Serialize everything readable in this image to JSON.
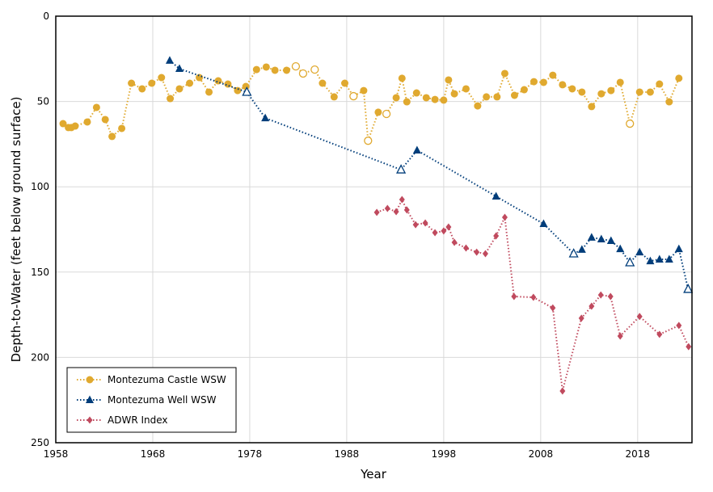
{
  "chart_data": {
    "type": "line",
    "xlabel": "Year",
    "ylabel": "Depth-to-Water (feet below ground surface)",
    "xlim": [
      1958,
      2023.6
    ],
    "ylim": [
      0,
      250
    ],
    "y_inverted": true,
    "grid": true,
    "xticks": [
      1958,
      1968,
      1978,
      1988,
      1998,
      2008,
      2018
    ],
    "yticks": [
      0,
      50,
      100,
      150,
      200,
      250
    ],
    "legend_position": "bottom-left",
    "series": [
      {
        "name": "Montezuma Castle WSW",
        "color": "#E0A92F",
        "marker": "circle",
        "points": [
          [
            1958.75,
            63
          ],
          [
            1959.3,
            65.3
          ],
          [
            1959.6,
            65.3
          ],
          [
            1960.0,
            64.4
          ],
          [
            1961.25,
            62
          ],
          [
            1962.2,
            53.5
          ],
          [
            1963.1,
            60.6
          ],
          [
            1963.8,
            70.5
          ],
          [
            1964.8,
            65.8
          ],
          [
            1965.8,
            39.3
          ],
          [
            1966.9,
            42.6
          ],
          [
            1967.9,
            39.3
          ],
          [
            1968.9,
            36
          ],
          [
            1969.8,
            48.3
          ],
          [
            1970.75,
            42.6
          ],
          [
            1971.8,
            39.3
          ],
          [
            1972.8,
            36
          ],
          [
            1973.8,
            44.5
          ],
          [
            1974.75,
            37.9
          ],
          [
            1975.75,
            39.8
          ],
          [
            1976.75,
            43.6
          ],
          [
            1977.6,
            41.2
          ],
          [
            1978.7,
            31.3
          ],
          [
            1979.7,
            29.8
          ],
          [
            1980.6,
            31.7
          ],
          [
            1981.8,
            31.7
          ],
          [
            1982.75,
            29.4,
            "open"
          ],
          [
            1983.5,
            33.6,
            "open"
          ],
          [
            1984.7,
            31.3,
            "open"
          ],
          [
            1985.5,
            39.3
          ],
          [
            1986.7,
            47.3
          ],
          [
            1987.8,
            39.3
          ],
          [
            1988.7,
            46.9,
            "open"
          ],
          [
            1989.75,
            43.6
          ],
          [
            1990.2,
            73,
            "open"
          ],
          [
            1991.25,
            56.3
          ],
          [
            1992.1,
            57.3,
            "open"
          ],
          [
            1993.1,
            47.8
          ],
          [
            1993.7,
            36.4
          ],
          [
            1994.2,
            50.2
          ],
          [
            1995.2,
            45
          ],
          [
            1996.2,
            47.8
          ],
          [
            1997.1,
            48.8
          ],
          [
            1998.0,
            49.2
          ],
          [
            1998.5,
            37.4
          ],
          [
            1999.1,
            45.5
          ],
          [
            2000.3,
            42.6
          ],
          [
            2001.5,
            52.6
          ],
          [
            2002.4,
            47.3
          ],
          [
            2003.5,
            47.3
          ],
          [
            2004.3,
            33.6
          ],
          [
            2005.3,
            46.4
          ],
          [
            2006.3,
            43.1
          ],
          [
            2007.3,
            38.4
          ],
          [
            2008.3,
            38.8
          ],
          [
            2009.25,
            34.6
          ],
          [
            2010.25,
            40.2
          ],
          [
            2011.25,
            42.6
          ],
          [
            2012.25,
            44.5
          ],
          [
            2013.25,
            53
          ],
          [
            2014.25,
            45.5
          ],
          [
            2015.25,
            43.6
          ],
          [
            2016.2,
            38.8
          ],
          [
            2017.2,
            63,
            "open"
          ],
          [
            2018.2,
            44.5
          ],
          [
            2019.3,
            44.5
          ],
          [
            2020.25,
            39.8
          ],
          [
            2021.25,
            50.2
          ],
          [
            2022.25,
            36.4
          ]
        ]
      },
      {
        "name": "Montezuma Well WSW",
        "color": "#003D7A",
        "marker": "triangle",
        "points": [
          [
            1969.75,
            26
          ],
          [
            1970.75,
            30.8
          ],
          [
            1977.7,
            44.5,
            "open"
          ],
          [
            1979.6,
            59.7
          ],
          [
            1993.6,
            90,
            "open"
          ],
          [
            1995.25,
            78.6
          ],
          [
            2003.4,
            105.6
          ],
          [
            2008.3,
            121.7
          ],
          [
            2011.4,
            139.2,
            "open"
          ],
          [
            2012.25,
            136.8
          ],
          [
            2013.25,
            129.7
          ],
          [
            2014.25,
            130.7
          ],
          [
            2015.25,
            131.6
          ],
          [
            2016.2,
            136.4
          ],
          [
            2017.2,
            144.4,
            "open"
          ],
          [
            2018.2,
            138.3
          ],
          [
            2019.3,
            143.5
          ],
          [
            2020.25,
            142.5
          ],
          [
            2021.25,
            142.5
          ],
          [
            2022.25,
            136.4
          ],
          [
            2023.2,
            160,
            "open"
          ]
        ]
      },
      {
        "name": "ADWR Index",
        "color": "#C04A5E",
        "marker": "diamond",
        "points": [
          [
            1991.1,
            115
          ],
          [
            1992.2,
            112.7
          ],
          [
            1993.1,
            114.6
          ],
          [
            1993.7,
            107.5
          ],
          [
            1994.2,
            113.6
          ],
          [
            1995.1,
            122.2
          ],
          [
            1996.1,
            121.2
          ],
          [
            1997.1,
            126.9
          ],
          [
            1998.0,
            125.9
          ],
          [
            1998.5,
            123.6
          ],
          [
            1999.1,
            132.6
          ],
          [
            2000.3,
            135.9
          ],
          [
            2001.4,
            138.3
          ],
          [
            2002.3,
            139.2
          ],
          [
            2003.4,
            128.8
          ],
          [
            2004.3,
            117.9
          ],
          [
            2005.25,
            164.3
          ],
          [
            2007.25,
            164.8
          ],
          [
            2009.25,
            171
          ],
          [
            2010.25,
            219.7
          ],
          [
            2012.2,
            177
          ],
          [
            2013.25,
            170
          ],
          [
            2014.2,
            163.4
          ],
          [
            2015.2,
            164.3
          ],
          [
            2016.2,
            187.5
          ],
          [
            2018.2,
            176
          ],
          [
            2020.25,
            186.5
          ],
          [
            2022.25,
            181.3
          ],
          [
            2023.25,
            193.7
          ]
        ]
      }
    ]
  }
}
